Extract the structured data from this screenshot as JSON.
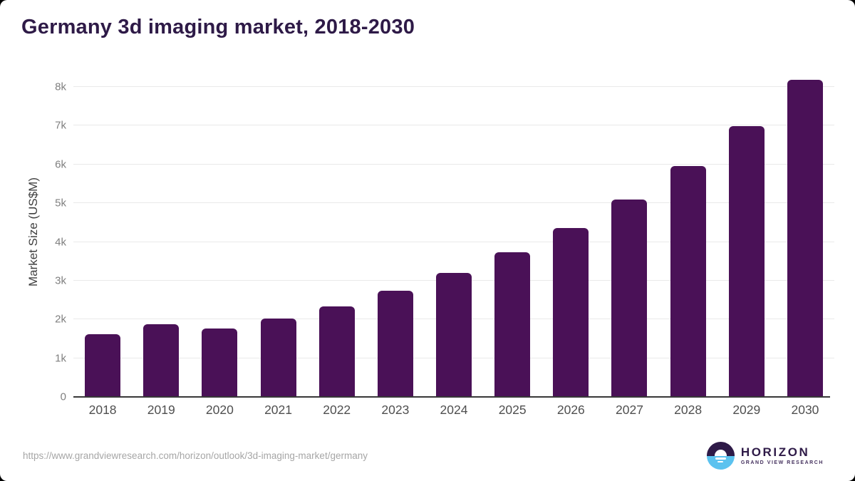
{
  "title": {
    "text": "Germany 3d imaging market, 2018-2030",
    "color": "#2e1a47"
  },
  "chart_data": {
    "type": "bar",
    "title": "Germany 3d imaging market, 2018-2030",
    "categories": [
      "2018",
      "2019",
      "2020",
      "2021",
      "2022",
      "2023",
      "2024",
      "2025",
      "2026",
      "2027",
      "2028",
      "2029",
      "2030"
    ],
    "values": [
      1620,
      1880,
      1760,
      2020,
      2340,
      2740,
      3200,
      3730,
      4360,
      5090,
      5950,
      6980,
      8190
    ],
    "xlabel": "",
    "ylabel": "Market Size (US$M)",
    "ylim": [
      0,
      8000
    ],
    "yticks": [
      {
        "value": 0,
        "label": "0"
      },
      {
        "value": 1000,
        "label": "1k"
      },
      {
        "value": 2000,
        "label": "2k"
      },
      {
        "value": 3000,
        "label": "3k"
      },
      {
        "value": 4000,
        "label": "4k"
      },
      {
        "value": 5000,
        "label": "5k"
      },
      {
        "value": 6000,
        "label": "6k"
      },
      {
        "value": 7000,
        "label": "7k"
      },
      {
        "value": 8000,
        "label": "8k"
      }
    ],
    "grid": "horizontal-only",
    "legend_position": "none",
    "bar_color": "#4a1157"
  },
  "footer": {
    "source_url": "https://www.grandviewresearch.com/horizon/outlook/3d-imaging-market/germany",
    "logo": {
      "name": "HORIZON",
      "subtitle": "GRAND VIEW RESEARCH",
      "mark_top_color": "#2e1a47",
      "mark_bottom_color": "#5bc2ef"
    }
  },
  "colors": {
    "page_background": "#000000",
    "card_background": "#ffffff",
    "gridline": "#e9e9e9",
    "axis_line": "#383838",
    "y_tick_text": "#7f7f7f",
    "x_tick_text": "#4f4f4f",
    "axis_title_text": "#3f3f3f",
    "url_text": "#a6a6a6"
  }
}
